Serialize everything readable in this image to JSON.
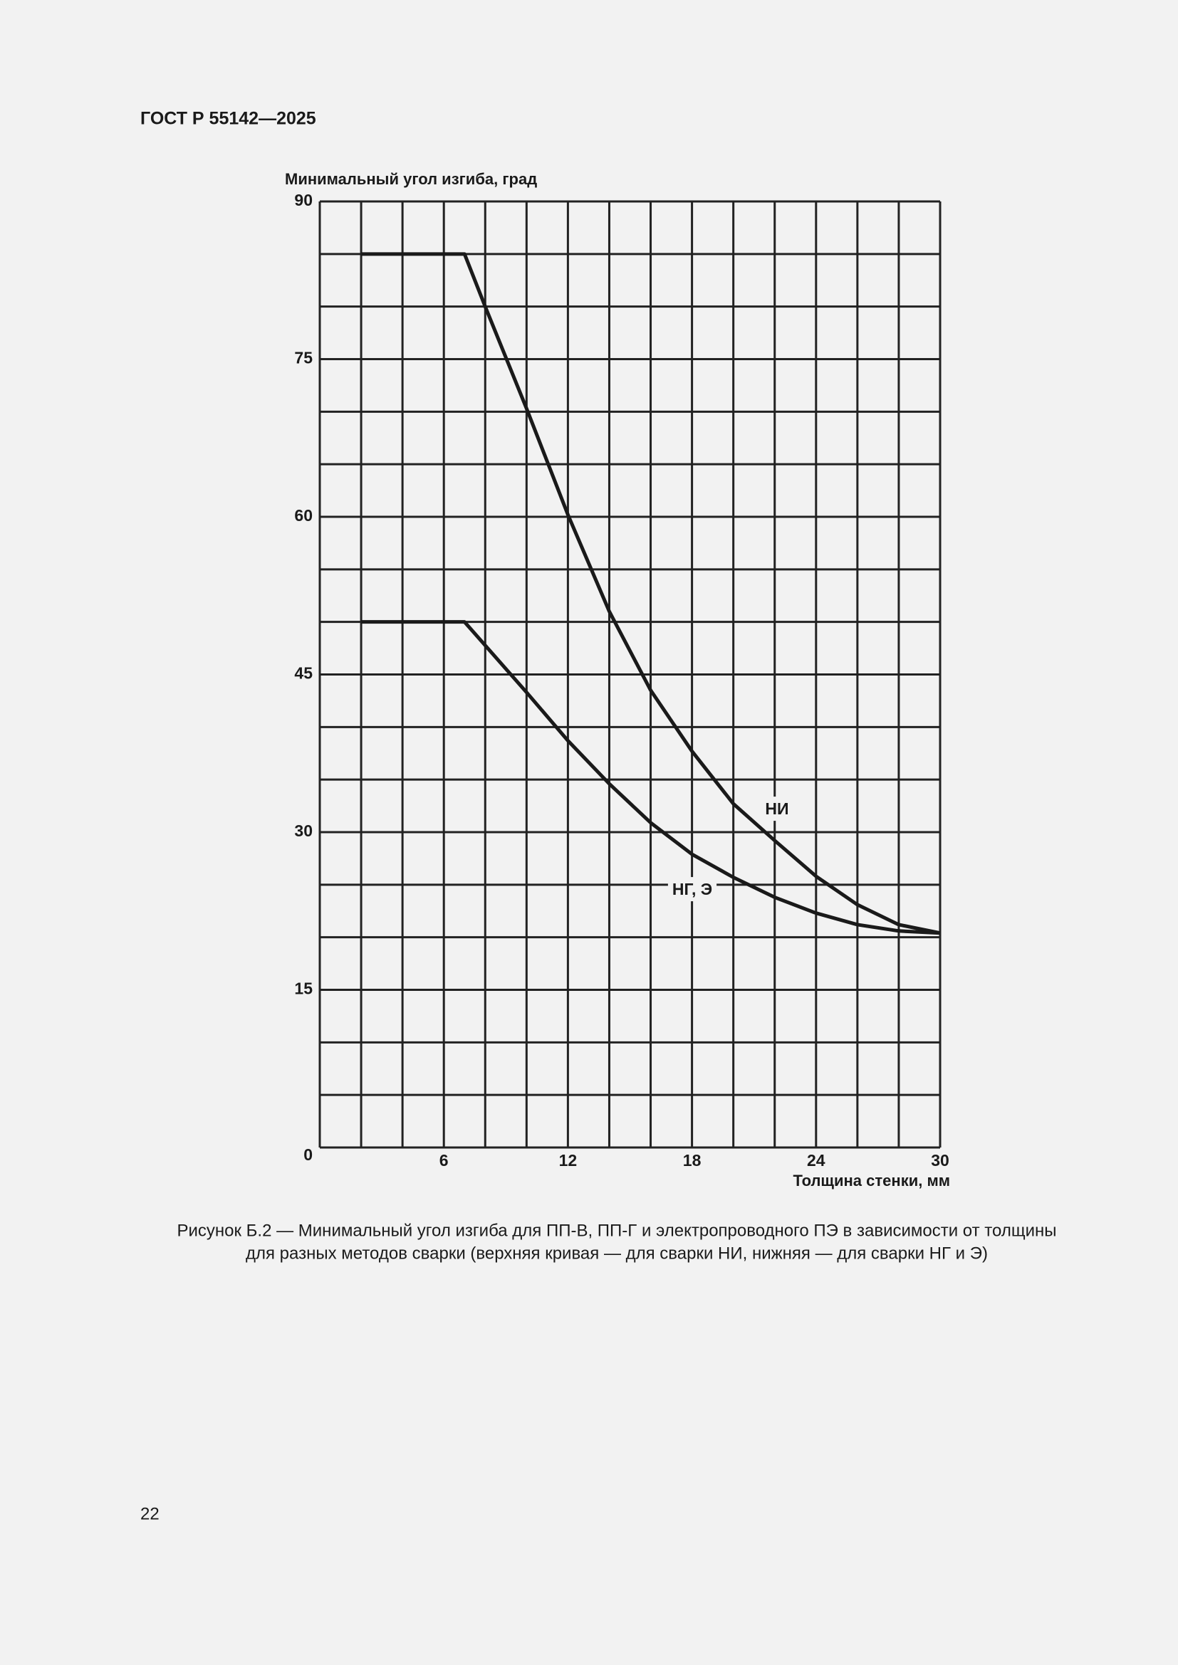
{
  "header": {
    "title": "ГОСТ Р 55142—2025"
  },
  "chart_data": {
    "type": "line",
    "ylabel": "Минимальный угол изгиба, град",
    "xlabel": "Толщина стенки, мм",
    "xlim": [
      0,
      30
    ],
    "ylim": [
      0,
      90
    ],
    "xticks": [
      6,
      12,
      18,
      24,
      30
    ],
    "yticks": [
      0,
      15,
      30,
      45,
      60,
      75,
      90
    ],
    "xgrid": [
      0,
      2,
      4,
      6,
      8,
      10,
      12,
      14,
      16,
      18,
      20,
      22,
      24,
      26,
      28,
      30
    ],
    "ygrid": [
      0,
      5,
      10,
      15,
      20,
      25,
      30,
      35,
      40,
      45,
      50,
      55,
      60,
      65,
      70,
      75,
      80,
      85,
      90
    ],
    "grid": true,
    "series": [
      {
        "name": "НИ",
        "color": "#1a1a1a",
        "x": [
          2,
          7,
          8,
          10,
          12,
          14,
          16,
          18,
          20,
          22,
          24,
          26,
          28,
          30
        ],
        "values": [
          85,
          85,
          80,
          70.3,
          60.2,
          51,
          43.5,
          37.7,
          32.7,
          29.2,
          25.8,
          23.1,
          21.2,
          20.4
        ]
      },
      {
        "name": "НГ, Э",
        "color": "#1a1a1a",
        "x": [
          2,
          7,
          10,
          12,
          14,
          16,
          18,
          20,
          22,
          24,
          26,
          28,
          30
        ],
        "values": [
          50,
          50,
          43.3,
          38.7,
          34.6,
          30.9,
          27.9,
          25.7,
          23.8,
          22.3,
          21.2,
          20.6,
          20.4
        ]
      }
    ]
  },
  "caption": [
    "Рисунок Б.2 — Минимальный угол изгиба для ПП-В, ПП-Г и электропроводного ПЭ в зависимости от толщины",
    "для разных методов сварки (верхняя кривая — для сварки НИ, нижняя — для сварки НГ и Э)"
  ],
  "footer": {
    "page_number": "22"
  }
}
